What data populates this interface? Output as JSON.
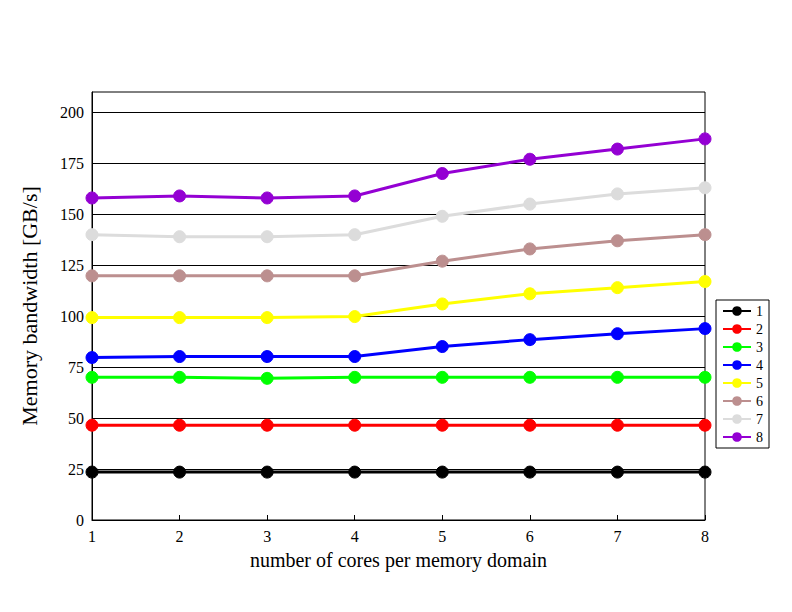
{
  "chart_data": {
    "type": "line",
    "x_label": "number of cores per memory domain",
    "y_label": "Memory bandwidth [GB/s]",
    "x": [
      1,
      2,
      3,
      4,
      5,
      6,
      7,
      8
    ],
    "xlim": [
      1,
      8
    ],
    "xticks": [
      1,
      2,
      3,
      4,
      5,
      6,
      7,
      8
    ],
    "ylim": [
      0,
      210
    ],
    "yticks": [
      0,
      25,
      50,
      75,
      100,
      125,
      150,
      175,
      200
    ],
    "grid": true,
    "legend": "right",
    "marker": "circle",
    "series": [
      {
        "name": "1",
        "color": "#000000",
        "values": [
          23.5,
          23.5,
          23.5,
          23.5,
          23.5,
          23.5,
          23.5,
          23.5
        ]
      },
      {
        "name": "2",
        "color": "#ff0000",
        "values": [
          46.5,
          46.5,
          46.5,
          46.5,
          46.5,
          46.5,
          46.5,
          46.5
        ]
      },
      {
        "name": "3",
        "color": "#00ff00",
        "values": [
          70,
          70,
          69.5,
          70,
          70,
          70,
          70,
          70
        ]
      },
      {
        "name": "4",
        "color": "#0000ff",
        "values": [
          79.7,
          80.2,
          80.2,
          80.2,
          85.1,
          88.5,
          91.4,
          93.9
        ]
      },
      {
        "name": "5",
        "color": "#ffff00",
        "values": [
          99.3,
          99.3,
          99.3,
          99.8,
          106,
          111,
          114,
          117
        ]
      },
      {
        "name": "6",
        "color": "#bc8f8f",
        "values": [
          119.8,
          119.8,
          119.8,
          119.8,
          127,
          133,
          137,
          140
        ]
      },
      {
        "name": "7",
        "color": "#dcdcdc",
        "values": [
          140,
          139,
          139,
          140,
          149,
          155,
          160,
          163
        ]
      },
      {
        "name": "8",
        "color": "#9400d3",
        "values": [
          158,
          159,
          158,
          159,
          170,
          177,
          182,
          187
        ]
      }
    ]
  }
}
